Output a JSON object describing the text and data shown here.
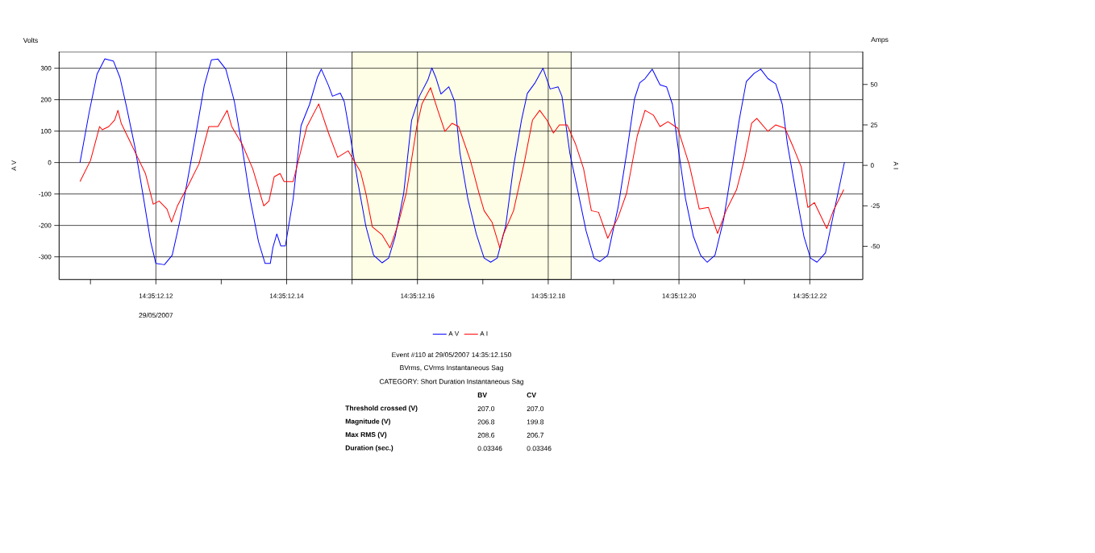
{
  "chart_data": {
    "type": "line",
    "xlim": [
      "2007-05-29T14:35:12.1052",
      "2007-05-29T14:35:12.2281"
    ],
    "ylim": [
      -372,
      353
    ],
    "y2lim": [
      -70.5,
      70.3
    ],
    "xticks": [
      {
        "value": "2007-05-29T14:35:12.11",
        "label": null
      },
      {
        "value": "2007-05-29T14:35:12.12",
        "label": "14:35:12.12"
      },
      {
        "value": "2007-05-29T14:35:12.13",
        "label": null
      },
      {
        "value": "2007-05-29T14:35:12.14",
        "label": "14:35:12.14"
      },
      {
        "value": "2007-05-29T14:35:12.15",
        "label": null
      },
      {
        "value": "2007-05-29T14:35:12.16",
        "label": "14:35:12.16"
      },
      {
        "value": "2007-05-29T14:35:12.17",
        "label": null
      },
      {
        "value": "2007-05-29T14:35:12.18",
        "label": "14:35:12.18"
      },
      {
        "value": "2007-05-29T14:35:12.19",
        "label": null
      },
      {
        "value": "2007-05-29T14:35:12.20",
        "label": "14:35:12.20"
      },
      {
        "value": "2007-05-29T14:35:12.21",
        "label": null
      },
      {
        "value": "2007-05-29T14:35:12.22",
        "label": "14:35:12.22"
      }
    ],
    "yticks": [
      -300,
      -200,
      -100,
      0,
      100,
      200,
      300
    ],
    "y2ticks": [
      -50,
      -25,
      0,
      25,
      50
    ],
    "ylabel": "A V",
    "y2label": "A I",
    "grid": true,
    "legend": "bottom",
    "bands": [
      {
        "axis": "x",
        "from": "2007-05-29T14:35:12.15",
        "to": "2007-05-29T14:35:12.1835",
        "color": "#fefee6"
      }
    ],
    "series": [
      {
        "name": "A V",
        "color": "#0000ff",
        "x": [
          "2007-05-29T14:35:12.1084",
          "2007-05-29T14:35:12.1098",
          "2007-05-29T14:35:12.1110",
          "2007-05-29T14:35:12.1122",
          "2007-05-29T14:35:12.1135",
          "2007-05-29T14:35:12.1145",
          "2007-05-29T14:35:12.1155",
          "2007-05-29T14:35:12.1168",
          "2007-05-29T14:35:12.1180",
          "2007-05-29T14:35:12.1192",
          "2007-05-29T14:35:12.1200",
          "2007-05-29T14:35:12.1213",
          "2007-05-29T14:35:12.1225",
          "2007-05-29T14:35:12.1237",
          "2007-05-29T14:35:12.1250",
          "2007-05-29T14:35:12.1262",
          "2007-05-29T14:35:12.1274",
          "2007-05-29T14:35:12.1285",
          "2007-05-29T14:35:12.1295",
          "2007-05-29T14:35:12.1307",
          "2007-05-29T14:35:12.1320",
          "2007-05-29T14:35:12.1332",
          "2007-05-29T14:35:12.1344",
          "2007-05-29T14:35:12.1357",
          "2007-05-29T14:35:12.1367",
          "2007-05-29T14:35:12.1375",
          "2007-05-29T14:35:12.1379",
          "2007-05-29T14:35:12.1385",
          "2007-05-29T14:35:12.1391",
          "2007-05-29T14:35:12.1398",
          "2007-05-29T14:35:12.1410",
          "2007-05-29T14:35:12.1422",
          "2007-05-29T14:35:12.1435",
          "2007-05-29T14:35:12.1447",
          "2007-05-29T14:35:12.1453",
          "2007-05-29T14:35:12.1464",
          "2007-05-29T14:35:12.1470",
          "2007-05-29T14:35:12.1482",
          "2007-05-29T14:35:12.1488",
          "2007-05-29T14:35:12.1496",
          "2007-05-29T14:35:12.1509",
          "2007-05-29T14:35:12.1521",
          "2007-05-29T14:35:12.1533",
          "2007-05-29T14:35:12.1546",
          "2007-05-29T14:35:12.1556",
          "2007-05-29T14:35:12.1566",
          "2007-05-29T14:35:12.1579",
          "2007-05-29T14:35:12.1591",
          "2007-05-29T14:35:12.1603",
          "2007-05-29T14:35:12.1616",
          "2007-05-29T14:35:12.1622",
          "2007-05-29T14:35:12.1628",
          "2007-05-29T14:35:12.1636",
          "2007-05-29T14:35:12.1648",
          "2007-05-29T14:35:12.1657",
          "2007-05-29T14:35:12.1665",
          "2007-05-29T14:35:12.1677",
          "2007-05-29T14:35:12.1690",
          "2007-05-29T14:35:12.1702",
          "2007-05-29T14:35:12.1712",
          "2007-05-29T14:35:12.1722",
          "2007-05-29T14:35:12.1735",
          "2007-05-29T14:35:12.1747",
          "2007-05-29T14:35:12.1759",
          "2007-05-29T14:35:12.1768",
          "2007-05-29T14:35:12.1780",
          "2007-05-29T14:35:12.1792",
          "2007-05-29T14:35:12.1803",
          "2007-05-29T14:35:12.1815",
          "2007-05-29T14:35:12.1821",
          "2007-05-29T14:35:12.1833",
          "2007-05-29T14:35:12.1846",
          "2007-05-29T14:35:12.1858",
          "2007-05-29T14:35:12.1870",
          "2007-05-29T14:35:12.1879",
          "2007-05-29T14:35:12.1891",
          "2007-05-29T14:35:12.1907",
          "2007-05-29T14:35:12.1920",
          "2007-05-29T14:35:12.1932",
          "2007-05-29T14:35:12.1940",
          "2007-05-29T14:35:12.1948",
          "2007-05-29T14:35:12.1959",
          "2007-05-29T14:35:12.1971",
          "2007-05-29T14:35:12.1981",
          "2007-05-29T14:35:12.1990",
          "2007-05-29T14:35:12.1998",
          "2007-05-29T14:35:12.2010",
          "2007-05-29T14:35:12.2022",
          "2007-05-29T14:35:12.2033",
          "2007-05-29T14:35:12.2043",
          "2007-05-29T14:35:12.2055",
          "2007-05-29T14:35:12.2068",
          "2007-05-29T14:35:12.2080",
          "2007-05-29T14:35:12.2092",
          "2007-05-29T14:35:12.2103",
          "2007-05-29T14:35:12.2115",
          "2007-05-29T14:35:12.2125",
          "2007-05-29T14:35:12.2136",
          "2007-05-29T14:35:12.2148",
          "2007-05-29T14:35:12.2158",
          "2007-05-29T14:35:12.2166",
          "2007-05-29T14:35:12.2179",
          "2007-05-29T14:35:12.2191",
          "2007-05-29T14:35:12.2201",
          "2007-05-29T14:35:12.2211",
          "2007-05-29T14:35:12.2224",
          "2007-05-29T14:35:12.2236",
          "2007-05-29T14:35:12.2253"
        ],
        "values": [
          0,
          160,
          281,
          330,
          323,
          271,
          178,
          49,
          -98,
          -252,
          -321,
          -325,
          -295,
          -183,
          -38,
          100,
          245,
          327,
          329,
          297,
          194,
          48,
          -115,
          -252,
          -321,
          -321,
          -270,
          -227,
          -265,
          -265,
          -115,
          117,
          185,
          271,
          297,
          245,
          211,
          221,
          194,
          100,
          -64,
          -201,
          -295,
          -319,
          -304,
          -235,
          -98,
          134,
          211,
          263,
          301,
          271,
          218,
          241,
          194,
          31,
          -115,
          -227,
          -304,
          -317,
          -304,
          -201,
          -12,
          134,
          220,
          254,
          300,
          234,
          241,
          211,
          31,
          -98,
          -218,
          -304,
          -315,
          -295,
          -141,
          31,
          203,
          254,
          267,
          297,
          247,
          241,
          185,
          57,
          -115,
          -235,
          -295,
          -317,
          -295,
          -184,
          -29,
          134,
          258,
          284,
          297,
          267,
          250,
          185,
          57,
          -98,
          -235,
          -304,
          -317,
          -287,
          -167,
          1
        ]
      },
      {
        "name": "A I",
        "color": "#ff0000",
        "axis": "y2",
        "x": [
          "2007-05-29T14:35:12.1084",
          "2007-05-29T14:35:12.1100",
          "2007-05-29T14:35:12.1114",
          "2007-05-29T14:35:12.1118",
          "2007-05-29T14:35:12.1128",
          "2007-05-29T14:35:12.1137",
          "2007-05-29T14:35:12.1142",
          "2007-05-29T14:35:12.1147",
          "2007-05-29T14:35:12.1159",
          "2007-05-29T14:35:12.1172",
          "2007-05-29T14:35:12.1184",
          "2007-05-29T14:35:12.1196",
          "2007-05-29T14:35:12.1205",
          "2007-05-29T14:35:12.1217",
          "2007-05-29T14:35:12.1224",
          "2007-05-29T14:35:12.1233",
          "2007-05-29T14:35:12.1250",
          "2007-05-29T14:35:12.1266",
          "2007-05-29T14:35:12.1281",
          "2007-05-29T14:35:12.1295",
          "2007-05-29T14:35:12.1309",
          "2007-05-29T14:35:12.1316",
          "2007-05-29T14:35:12.1332",
          "2007-05-29T14:35:12.1348",
          "2007-05-29T14:35:12.1365",
          "2007-05-29T14:35:12.1373",
          "2007-05-29T14:35:12.1381",
          "2007-05-29T14:35:12.1390",
          "2007-05-29T14:35:12.1396",
          "2007-05-29T14:35:12.1410",
          "2007-05-29T14:35:12.1431",
          "2007-05-29T14:35:12.1449",
          "2007-05-29T14:35:12.1464",
          "2007-05-29T14:35:12.1478",
          "2007-05-29T14:35:12.1494",
          "2007-05-29T14:35:12.1513",
          "2007-05-29T14:35:12.1521",
          "2007-05-29T14:35:12.1531",
          "2007-05-29T14:35:12.1546",
          "2007-05-29T14:35:12.1558",
          "2007-05-29T14:35:12.1570",
          "2007-05-29T14:35:12.1583",
          "2007-05-29T14:35:12.1599",
          "2007-05-29T14:35:12.1607",
          "2007-05-29T14:35:12.1620",
          "2007-05-29T14:35:12.1632",
          "2007-05-29T14:35:12.1642",
          "2007-05-29T14:35:12.1653",
          "2007-05-29T14:35:12.1663",
          "2007-05-29T14:35:12.1681",
          "2007-05-29T14:35:12.1694",
          "2007-05-29T14:35:12.1702",
          "2007-05-29T14:35:12.1714",
          "2007-05-29T14:35:12.1726",
          "2007-05-29T14:35:12.1731",
          "2007-05-29T14:35:12.1747",
          "2007-05-29T14:35:12.1764",
          "2007-05-29T14:35:12.1776",
          "2007-05-29T14:35:12.1787",
          "2007-05-29T14:35:12.1798",
          "2007-05-29T14:35:12.1808",
          "2007-05-29T14:35:12.1817",
          "2007-05-29T14:35:12.1829",
          "2007-05-29T14:35:12.1842",
          "2007-05-29T14:35:12.1854",
          "2007-05-29T14:35:12.1866",
          "2007-05-29T14:35:12.1877",
          "2007-05-29T14:35:12.1891",
          "2007-05-29T14:35:12.1907",
          "2007-05-29T14:35:12.1920",
          "2007-05-29T14:35:12.1936",
          "2007-05-29T14:35:12.1948",
          "2007-05-29T14:35:12.1961",
          "2007-05-29T14:35:12.1971",
          "2007-05-29T14:35:12.1983",
          "2007-05-29T14:35:12.1998",
          "2007-05-29T14:35:12.2016",
          "2007-05-29T14:35:12.2031",
          "2007-05-29T14:35:12.2045",
          "2007-05-29T14:35:12.2059",
          "2007-05-29T14:35:12.2072",
          "2007-05-29T14:35:12.2088",
          "2007-05-29T14:35:12.2101",
          "2007-05-29T14:35:12.2111",
          "2007-05-29T14:35:12.2119",
          "2007-05-29T14:35:12.2136",
          "2007-05-29T14:35:12.2148",
          "2007-05-29T14:35:12.2162",
          "2007-05-29T14:35:12.2175",
          "2007-05-29T14:35:12.2187",
          "2007-05-29T14:35:12.2197",
          "2007-05-29T14:35:12.2207",
          "2007-05-29T14:35:12.2226",
          "2007-05-29T14:35:12.2236",
          "2007-05-29T14:35:12.2252"
        ],
        "values": [
          -10,
          3,
          24,
          22,
          24,
          28,
          34,
          26,
          16,
          5,
          -5,
          -24,
          -22,
          -27,
          -35,
          -25,
          -12,
          1,
          24,
          24,
          34,
          24,
          13,
          -2,
          -25,
          -22,
          -7,
          -5,
          -10,
          -10,
          24,
          38,
          20,
          5,
          9,
          -4,
          -17,
          -38,
          -43,
          -51,
          -37,
          -17,
          24,
          38,
          48,
          33,
          21,
          26,
          24,
          3,
          -17,
          -28,
          -35,
          -51,
          -43,
          -28,
          3,
          28,
          34,
          28,
          20,
          25,
          25,
          13,
          -2,
          -28,
          -29,
          -45,
          -32,
          -17,
          18,
          34,
          31,
          24,
          27,
          23,
          0,
          -27,
          -26,
          -42,
          -28,
          -15,
          5,
          26,
          29,
          21,
          25,
          23,
          11,
          -1,
          -26,
          -23,
          -39,
          -28,
          -15
        ]
      }
    ],
    "annotations": [
      "Volts",
      "Amps",
      "29/05/2007",
      "Event #110 at 29/05/2007 14:35:12.150",
      "BVrms, CVrms Instantaneous Sag",
      "CATEGORY: Short Duration Instantaneous Sag",
      "BV",
      "CV",
      "Threshold crossed (V)",
      "207.0",
      "207.0",
      "Magnitude (V)",
      "206.8",
      "199.8",
      "Max RMS (V)",
      "208.6",
      "206.7",
      "Duration (sec.)",
      "0.03346",
      "0.03346"
    ]
  }
}
